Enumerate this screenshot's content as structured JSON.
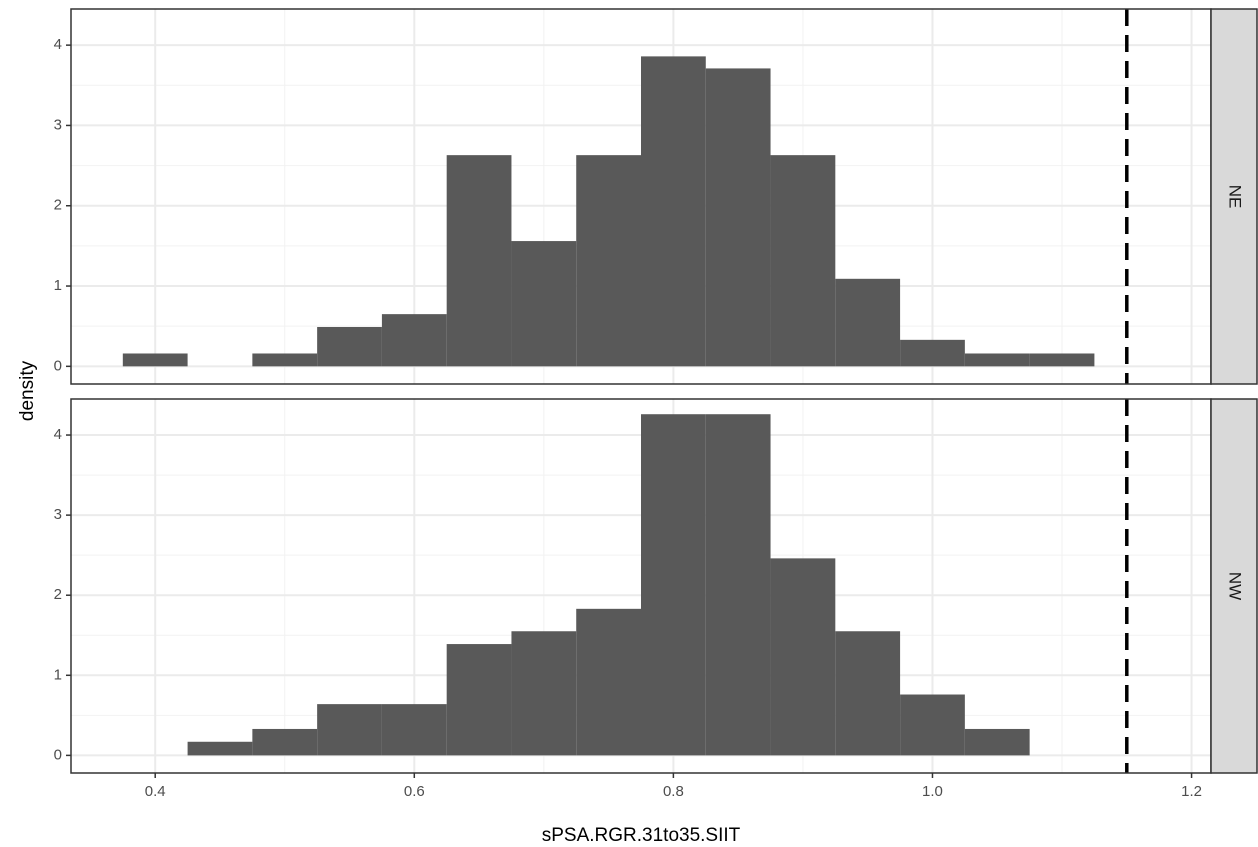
{
  "chart_data": {
    "type": "histogram",
    "xlabel": "sPSA.RGR.31to35.SIIT",
    "ylabel": "density",
    "xlim": [
      0.335,
      1.215
    ],
    "ylim": [
      -0.22,
      4.45
    ],
    "x_ticks": [
      0.4,
      0.6,
      0.8,
      1.0,
      1.2
    ],
    "x_tick_labels": [
      "0.4",
      "0.6",
      "0.8",
      "1.0",
      "1.2"
    ],
    "y_ticks": [
      0,
      1,
      2,
      3,
      4
    ],
    "y_tick_labels": [
      "0",
      "1",
      "2",
      "3",
      "4"
    ],
    "bin_width": 0.05,
    "bar_color": "#595959",
    "reference_line": {
      "x": 1.15,
      "style": "dashed",
      "color": "#000000"
    },
    "grid": true,
    "panels": [
      {
        "facet": "NE",
        "bins": [
          {
            "x0": 0.375,
            "x1": 0.425,
            "density": 0.16
          },
          {
            "x0": 0.475,
            "x1": 0.525,
            "density": 0.16
          },
          {
            "x0": 0.525,
            "x1": 0.575,
            "density": 0.49
          },
          {
            "x0": 0.575,
            "x1": 0.625,
            "density": 0.65
          },
          {
            "x0": 0.625,
            "x1": 0.675,
            "density": 2.63
          },
          {
            "x0": 0.675,
            "x1": 0.725,
            "density": 1.56
          },
          {
            "x0": 0.725,
            "x1": 0.775,
            "density": 2.63
          },
          {
            "x0": 0.775,
            "x1": 0.825,
            "density": 3.86
          },
          {
            "x0": 0.825,
            "x1": 0.875,
            "density": 3.71
          },
          {
            "x0": 0.875,
            "x1": 0.925,
            "density": 2.63
          },
          {
            "x0": 0.925,
            "x1": 0.975,
            "density": 1.09
          },
          {
            "x0": 0.975,
            "x1": 1.025,
            "density": 0.33
          },
          {
            "x0": 1.025,
            "x1": 1.075,
            "density": 0.16
          },
          {
            "x0": 1.075,
            "x1": 1.125,
            "density": 0.16
          }
        ]
      },
      {
        "facet": "NW",
        "bins": [
          {
            "x0": 0.425,
            "x1": 0.475,
            "density": 0.17
          },
          {
            "x0": 0.475,
            "x1": 0.525,
            "density": 0.33
          },
          {
            "x0": 0.525,
            "x1": 0.575,
            "density": 0.64
          },
          {
            "x0": 0.575,
            "x1": 0.625,
            "density": 0.64
          },
          {
            "x0": 0.625,
            "x1": 0.675,
            "density": 1.39
          },
          {
            "x0": 0.675,
            "x1": 0.725,
            "density": 1.55
          },
          {
            "x0": 0.725,
            "x1": 0.775,
            "density": 1.83
          },
          {
            "x0": 0.775,
            "x1": 0.825,
            "density": 4.26
          },
          {
            "x0": 0.825,
            "x1": 0.875,
            "density": 4.26
          },
          {
            "x0": 0.875,
            "x1": 0.925,
            "density": 2.46
          },
          {
            "x0": 0.925,
            "x1": 0.975,
            "density": 1.55
          },
          {
            "x0": 0.975,
            "x1": 1.025,
            "density": 0.76
          },
          {
            "x0": 1.025,
            "x1": 1.075,
            "density": 0.33
          }
        ]
      }
    ]
  }
}
